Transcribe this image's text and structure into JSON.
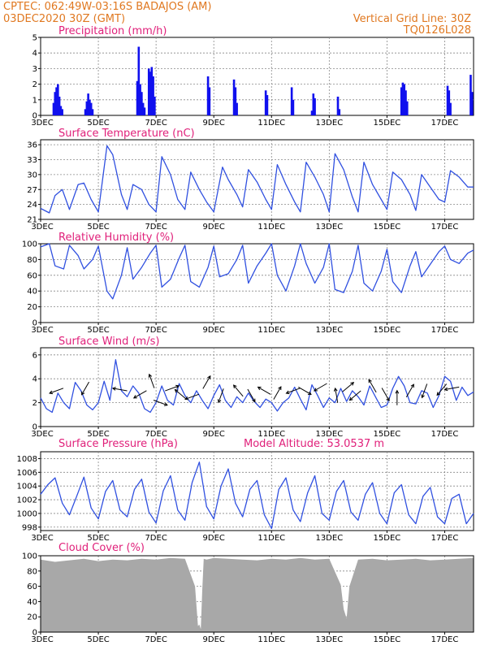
{
  "header": {
    "station_line": "CPTEC:   062:49W-03:16S   BADAJOS (AM)",
    "date_line": "03DEC2020 30Z (GMT)",
    "grid_line": "Vertical Grid Line: 30Z",
    "code": "TQ0126L028"
  },
  "x_axis": {
    "labels": [
      "3DEC",
      "5DEC",
      "7DEC",
      "9DEC",
      "11DEC",
      "13DEC",
      "15DEC",
      "17DEC"
    ],
    "label_days": [
      0,
      2,
      4,
      6,
      8,
      10,
      12,
      14
    ],
    "range_days": [
      0,
      15
    ]
  },
  "chart_data": [
    {
      "type": "bar",
      "title": "Precipitation (mm/h)",
      "ylim": [
        0,
        5
      ],
      "yticks": [
        0,
        1,
        2,
        3,
        4,
        5
      ],
      "color": "#1010ee",
      "x_days": [
        0.45,
        0.5,
        0.55,
        0.6,
        0.65,
        0.7,
        0.75,
        1.55,
        1.6,
        1.65,
        1.7,
        1.75,
        1.8,
        3.35,
        3.4,
        3.45,
        3.5,
        3.55,
        3.6,
        3.75,
        3.8,
        3.85,
        3.9,
        3.95,
        5.8,
        5.85,
        6.7,
        6.75,
        6.8,
        7.8,
        7.85,
        8.7,
        8.75,
        9.4,
        9.45,
        9.5,
        10.3,
        10.35,
        12.5,
        12.55,
        12.6,
        12.65,
        12.7,
        14.1,
        14.15,
        14.2,
        14.9,
        14.95
      ],
      "values": [
        0.8,
        1.5,
        1.8,
        2.0,
        1.2,
        0.6,
        0.4,
        0.4,
        0.9,
        1.4,
        1.0,
        0.8,
        0.4,
        2.2,
        4.4,
        2.0,
        1.5,
        0.8,
        0.5,
        3.0,
        2.8,
        3.1,
        2.5,
        1.2,
        2.5,
        1.8,
        2.3,
        1.8,
        0.8,
        1.6,
        1.3,
        1.8,
        1.0,
        0.3,
        1.4,
        1.1,
        1.2,
        0.4,
        1.8,
        2.1,
        2.0,
        1.6,
        0.9,
        1.9,
        1.6,
        0.8,
        2.6,
        1.5
      ]
    },
    {
      "type": "line",
      "title": "Surface Temperature (nC)",
      "ylim": [
        21,
        37
      ],
      "yticks": [
        21,
        24,
        27,
        30,
        33,
        36
      ],
      "color": "#3050e0",
      "x_days": [
        0.0,
        0.3,
        0.5,
        0.75,
        1.0,
        1.3,
        1.5,
        1.75,
        2.0,
        2.3,
        2.5,
        2.8,
        3.0,
        3.2,
        3.5,
        3.75,
        4.0,
        4.2,
        4.5,
        4.75,
        5.0,
        5.2,
        5.5,
        5.75,
        6.0,
        6.3,
        6.5,
        6.8,
        7.0,
        7.2,
        7.5,
        7.8,
        8.0,
        8.2,
        8.5,
        8.8,
        9.0,
        9.2,
        9.5,
        9.8,
        10.0,
        10.2,
        10.5,
        10.8,
        11.0,
        11.2,
        11.5,
        11.8,
        12.0,
        12.2,
        12.5,
        12.8,
        13.0,
        13.2,
        13.5,
        13.8,
        14.0,
        14.2,
        14.5,
        14.8,
        15.0
      ],
      "values": [
        23.2,
        22.3,
        25.8,
        27.0,
        23.0,
        28.0,
        28.3,
        25.0,
        22.5,
        35.8,
        34.0,
        26.0,
        23.0,
        28.0,
        27.0,
        24.0,
        22.5,
        33.6,
        30.0,
        25.0,
        23.0,
        30.5,
        27.0,
        24.5,
        22.5,
        31.5,
        29.0,
        26.0,
        23.5,
        31.0,
        28.5,
        25.0,
        23.0,
        32.0,
        28.0,
        24.5,
        22.5,
        32.5,
        29.5,
        26.0,
        22.5,
        34.2,
        31.0,
        25.5,
        22.5,
        32.5,
        28.0,
        25.0,
        23.0,
        30.5,
        29.0,
        26.0,
        22.8,
        30.0,
        27.5,
        25.0,
        24.5,
        30.8,
        29.5,
        27.5,
        27.5
      ]
    },
    {
      "type": "line",
      "title": "Relative Humidity (%)",
      "ylim": [
        0,
        100
      ],
      "yticks": [
        0,
        20,
        40,
        60,
        80,
        100
      ],
      "color": "#3050e0",
      "x_days": [
        0.0,
        0.3,
        0.5,
        0.8,
        1.0,
        1.3,
        1.5,
        1.8,
        2.0,
        2.3,
        2.5,
        2.8,
        3.0,
        3.2,
        3.5,
        3.8,
        4.0,
        4.2,
        4.5,
        4.8,
        5.0,
        5.2,
        5.5,
        5.8,
        6.0,
        6.2,
        6.5,
        6.8,
        7.0,
        7.2,
        7.5,
        7.8,
        8.0,
        8.2,
        8.5,
        8.8,
        9.0,
        9.2,
        9.5,
        9.8,
        10.0,
        10.2,
        10.5,
        10.8,
        11.0,
        11.2,
        11.5,
        11.8,
        12.0,
        12.2,
        12.5,
        12.8,
        13.0,
        13.2,
        13.5,
        13.8,
        14.0,
        14.2,
        14.5,
        14.8,
        15.0
      ],
      "values": [
        96,
        100,
        72,
        68,
        98,
        85,
        68,
        80,
        97,
        40,
        30,
        60,
        95,
        55,
        70,
        88,
        98,
        45,
        55,
        82,
        98,
        52,
        45,
        70,
        97,
        58,
        62,
        80,
        98,
        50,
        72,
        88,
        100,
        60,
        40,
        72,
        100,
        75,
        50,
        70,
        100,
        42,
        38,
        65,
        98,
        50,
        40,
        65,
        93,
        52,
        38,
        72,
        90,
        58,
        74,
        90,
        97,
        80,
        75,
        88,
        92
      ]
    },
    {
      "type": "line",
      "title": "Surface Wind (m/s)",
      "ylim": [
        0,
        6.6
      ],
      "yticks": [
        0,
        2,
        4,
        6
      ],
      "color": "#3050e0",
      "x_days": [
        0.0,
        0.2,
        0.4,
        0.6,
        0.8,
        1.0,
        1.2,
        1.4,
        1.6,
        1.8,
        2.0,
        2.2,
        2.4,
        2.6,
        2.8,
        3.0,
        3.2,
        3.4,
        3.6,
        3.8,
        4.0,
        4.2,
        4.4,
        4.6,
        4.8,
        5.0,
        5.2,
        5.4,
        5.6,
        5.8,
        6.0,
        6.2,
        6.4,
        6.6,
        6.8,
        7.0,
        7.2,
        7.4,
        7.6,
        7.8,
        8.0,
        8.2,
        8.4,
        8.6,
        8.8,
        9.0,
        9.2,
        9.4,
        9.6,
        9.8,
        10.0,
        10.2,
        10.4,
        10.6,
        10.8,
        11.0,
        11.2,
        11.4,
        11.6,
        11.8,
        12.0,
        12.2,
        12.4,
        12.6,
        12.8,
        13.0,
        13.2,
        13.4,
        13.6,
        13.8,
        14.0,
        14.2,
        14.4,
        14.6,
        14.8,
        15.0
      ],
      "values": [
        2.4,
        1.5,
        1.2,
        2.8,
        2.0,
        1.5,
        3.7,
        3.0,
        1.8,
        1.4,
        2.0,
        3.8,
        2.2,
        5.6,
        3.0,
        2.5,
        3.4,
        2.8,
        1.5,
        1.2,
        2.0,
        3.4,
        2.2,
        1.8,
        3.6,
        2.6,
        2.0,
        3.0,
        2.2,
        1.5,
        2.6,
        3.5,
        2.2,
        1.6,
        2.5,
        2.0,
        2.8,
        2.1,
        1.6,
        2.3,
        2.0,
        1.3,
        2.0,
        2.4,
        3.3,
        2.3,
        1.4,
        3.5,
        2.6,
        1.6,
        2.4,
        2.0,
        3.2,
        2.1,
        3.0,
        2.5,
        1.8,
        3.4,
        2.5,
        1.6,
        1.8,
        3.2,
        4.2,
        3.4,
        2.0,
        1.9,
        3.0,
        2.8,
        1.6,
        2.6,
        4.2,
        3.8,
        2.2,
        3.3,
        2.6,
        2.9
      ]
    },
    {
      "type": "line",
      "title": "Surface Pressure (hPa)",
      "annotation": "Model Altitude: 53.0537 m",
      "ylim": [
        997.5,
        1009
      ],
      "yticks": [
        998,
        1000,
        1002,
        1004,
        1006,
        1008
      ],
      "color": "#3050e0",
      "x_days": [
        0.0,
        0.25,
        0.5,
        0.75,
        1.0,
        1.25,
        1.5,
        1.75,
        2.0,
        2.25,
        2.5,
        2.75,
        3.0,
        3.25,
        3.5,
        3.75,
        4.0,
        4.25,
        4.5,
        4.75,
        5.0,
        5.25,
        5.5,
        5.75,
        6.0,
        6.25,
        6.5,
        6.75,
        7.0,
        7.25,
        7.5,
        7.75,
        8.0,
        8.25,
        8.5,
        8.75,
        9.0,
        9.25,
        9.5,
        9.75,
        10.0,
        10.25,
        10.5,
        10.75,
        11.0,
        11.25,
        11.5,
        11.75,
        12.0,
        12.25,
        12.5,
        12.75,
        13.0,
        13.25,
        13.5,
        13.75,
        14.0,
        14.25,
        14.5,
        14.75,
        15.0
      ],
      "values": [
        1002.8,
        1004.2,
        1005.2,
        1001.5,
        999.8,
        1002.5,
        1005.3,
        1000.8,
        999.2,
        1003.2,
        1004.8,
        1000.5,
        999.5,
        1003.5,
        1005.0,
        1000.2,
        998.6,
        1003.3,
        1005.5,
        1000.5,
        999.0,
        1004.5,
        1007.5,
        1001.0,
        999.2,
        1004.0,
        1006.5,
        1001.5,
        999.5,
        1003.5,
        1004.8,
        999.8,
        997.8,
        1003.5,
        1005.2,
        1000.5,
        998.8,
        1003.0,
        1005.5,
        1000.0,
        999.0,
        1003.2,
        1004.8,
        1000.2,
        999.0,
        1002.8,
        1004.5,
        1000.0,
        998.5,
        1003.0,
        1004.2,
        999.8,
        998.5,
        1002.5,
        1003.8,
        999.5,
        998.5,
        1002.2,
        1002.8,
        998.5,
        1000.0
      ]
    },
    {
      "type": "area",
      "title": "Cloud Cover (%)",
      "ylim": [
        0,
        100
      ],
      "yticks": [
        0,
        20,
        40,
        60,
        80,
        100
      ],
      "color": "#a8a8a8",
      "x_days": [
        0.0,
        0.5,
        1.0,
        1.5,
        2.0,
        2.5,
        3.0,
        3.5,
        4.0,
        4.5,
        5.0,
        5.35,
        5.45,
        5.5,
        5.55,
        5.6,
        5.65,
        5.75,
        6.0,
        6.5,
        7.0,
        7.5,
        8.0,
        8.5,
        9.0,
        9.5,
        10.0,
        10.4,
        10.5,
        10.6,
        10.7,
        11.0,
        11.5,
        12.0,
        12.5,
        13.0,
        13.5,
        14.0,
        14.5,
        15.0
      ],
      "values": [
        95,
        92,
        94,
        96,
        93,
        95,
        94,
        96,
        95,
        97,
        96,
        60,
        8,
        10,
        4,
        55,
        96,
        95,
        97,
        96,
        95,
        94,
        96,
        95,
        97,
        95,
        96,
        62,
        30,
        18,
        60,
        95,
        96,
        94,
        95,
        96,
        94,
        95,
        96,
        97
      ]
    }
  ],
  "wind_arrows": {
    "note_days": [
      0.55,
      1.55,
      2.75,
      3.45,
      3.85,
      4.15,
      4.55,
      4.85,
      5.25,
      5.75,
      6.25,
      6.85,
      7.3,
      7.75,
      8.2,
      8.75,
      9.15,
      9.7,
      10.25,
      10.65,
      10.9,
      11.5,
      11.95,
      12.35,
      12.8,
      13.3,
      13.9,
      14.25
    ],
    "speeds": [
      3.0,
      3.2,
      3.1,
      2.7,
      3.8,
      2.0,
      3.2,
      2.7,
      2.5,
      3.7,
      2.6,
      3.0,
      2.6,
      3.0,
      2.8,
      3.0,
      3.0,
      3.3,
      2.6,
      3.3,
      2.6,
      3.4,
      2.7,
      2.4,
      3.0,
      3.0,
      3.1,
      3.2
    ],
    "angles_deg": [
      200,
      240,
      170,
      210,
      110,
      340,
      20,
      140,
      200,
      60,
      250,
      130,
      300,
      150,
      60,
      200,
      330,
      210,
      100,
      40,
      220,
      120,
      300,
      90,
      60,
      250,
      230,
      190
    ]
  }
}
